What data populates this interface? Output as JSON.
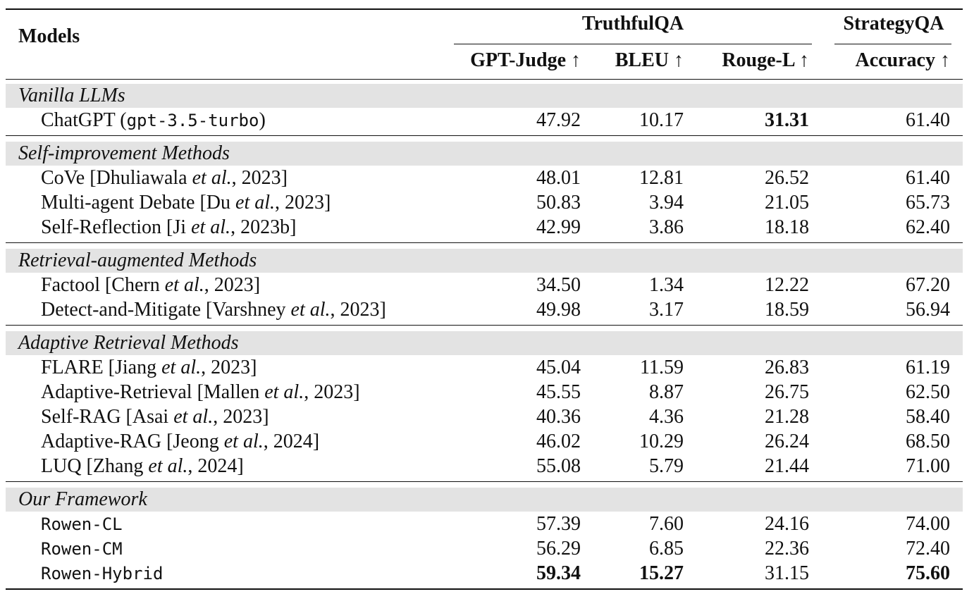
{
  "header": {
    "models": "Models",
    "truthfulqa": "TruthfulQA",
    "strategyqa": "StrategyQA",
    "gpt_judge": "GPT-Judge ↑",
    "bleu": "BLEU ↑",
    "rouge_l": "Rouge-L ↑",
    "accuracy": "Accuracy ↑"
  },
  "groups": [
    {
      "label": "Vanilla LLMs",
      "rows": [
        {
          "name": "ChatGPT (",
          "name_mono": "gpt-3.5-turbo",
          "name_after": ")",
          "values": [
            "47.92",
            "10.17",
            "31.31",
            "61.40"
          ],
          "bold": [
            false,
            false,
            true,
            false
          ]
        }
      ]
    },
    {
      "label": "Self-improvement Methods",
      "rows": [
        {
          "name": "CoVe [Dhuliawala ",
          "etal": "et al.",
          "year": ", 2023]",
          "values": [
            "48.01",
            "12.81",
            "26.52",
            "61.40"
          ],
          "bold": [
            false,
            false,
            false,
            false
          ]
        },
        {
          "name": "Multi-agent Debate [Du ",
          "etal": "et al.",
          "year": ", 2023]",
          "values": [
            "50.83",
            "3.94",
            "21.05",
            "65.73"
          ],
          "bold": [
            false,
            false,
            false,
            false
          ]
        },
        {
          "name": "Self-Reflection [Ji ",
          "etal": "et al.",
          "year": ", 2023b]",
          "values": [
            "42.99",
            "3.86",
            "18.18",
            "62.40"
          ],
          "bold": [
            false,
            false,
            false,
            false
          ]
        }
      ]
    },
    {
      "label": "Retrieval-augmented Methods",
      "rows": [
        {
          "name": "Factool [Chern ",
          "etal": "et al.",
          "year": ", 2023]",
          "values": [
            "34.50",
            "1.34",
            "12.22",
            "67.20"
          ],
          "bold": [
            false,
            false,
            false,
            false
          ]
        },
        {
          "name": "Detect-and-Mitigate [Varshney ",
          "etal": "et al.",
          "year": ", 2023]",
          "values": [
            "49.98",
            "3.17",
            "18.59",
            "56.94"
          ],
          "bold": [
            false,
            false,
            false,
            false
          ]
        }
      ]
    },
    {
      "label": "Adaptive Retrieval Methods",
      "rows": [
        {
          "name": "FLARE [Jiang ",
          "etal": "et al.",
          "year": ", 2023]",
          "values": [
            "45.04",
            "11.59",
            "26.83",
            "61.19"
          ],
          "bold": [
            false,
            false,
            false,
            false
          ]
        },
        {
          "name": "Adaptive-Retrieval [Mallen ",
          "etal": "et al.",
          "year": ", 2023]",
          "values": [
            "45.55",
            "8.87",
            "26.75",
            "62.50"
          ],
          "bold": [
            false,
            false,
            false,
            false
          ]
        },
        {
          "name": "Self-RAG [Asai ",
          "etal": "et al.",
          "year": ", 2023]",
          "values": [
            "40.36",
            "4.36",
            "21.28",
            "58.40"
          ],
          "bold": [
            false,
            false,
            false,
            false
          ]
        },
        {
          "name": "Adaptive-RAG [Jeong ",
          "etal": "et al.",
          "year": ", 2024]",
          "values": [
            "46.02",
            "10.29",
            "26.24",
            "68.50"
          ],
          "bold": [
            false,
            false,
            false,
            false
          ]
        },
        {
          "name": "LUQ [Zhang ",
          "etal": "et al.",
          "year": ", 2024]",
          "values": [
            "55.08",
            "5.79",
            "21.44",
            "71.00"
          ],
          "bold": [
            false,
            false,
            false,
            false
          ]
        }
      ]
    },
    {
      "label": "Our Framework",
      "rows": [
        {
          "name_mono": "Rowen-CL",
          "values": [
            "57.39",
            "7.60",
            "24.16",
            "74.00"
          ],
          "bold": [
            false,
            false,
            false,
            false
          ]
        },
        {
          "name_mono": "Rowen-CM",
          "values": [
            "56.29",
            "6.85",
            "22.36",
            "72.40"
          ],
          "bold": [
            false,
            false,
            false,
            false
          ]
        },
        {
          "name_mono": "Rowen-Hybrid",
          "values": [
            "59.34",
            "15.27",
            "31.15",
            "75.60"
          ],
          "bold": [
            true,
            true,
            false,
            true
          ]
        }
      ]
    }
  ]
}
